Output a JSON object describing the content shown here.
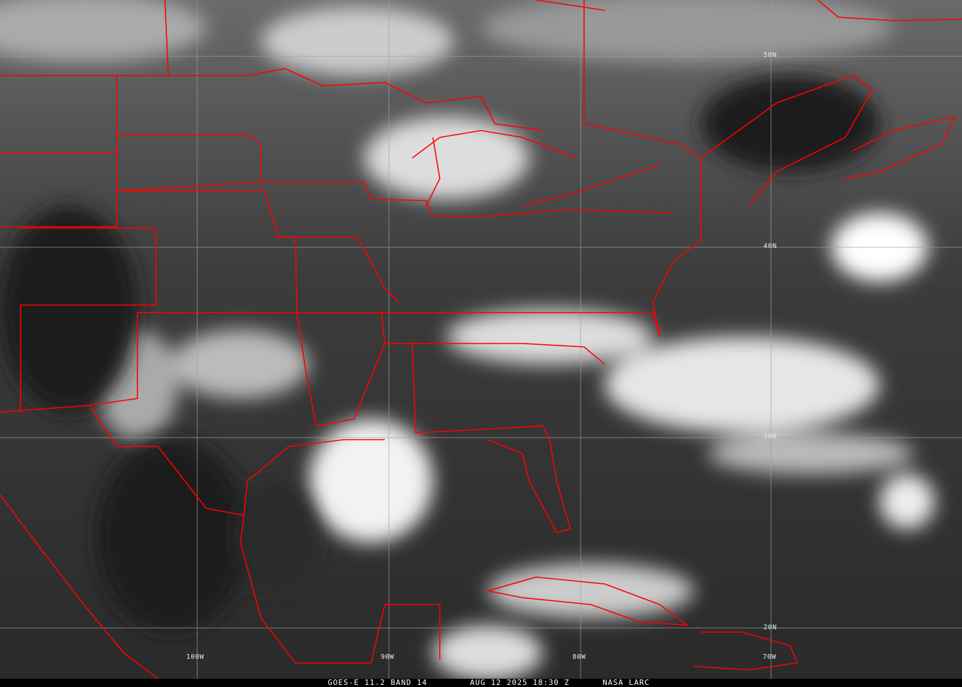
{
  "caption": {
    "satellite": "GOES-E 11.2 BAND 14",
    "datetime": "AUG 12 2025 18:30 Z",
    "credit": "NASA LARC"
  },
  "grid_labels": {
    "lat": [
      "50N",
      "40N",
      "30N",
      "20N"
    ],
    "lon": [
      "100W",
      "90W",
      "80W",
      "70W"
    ]
  },
  "colors": {
    "boundaries": "#ff0000",
    "grid": "#a0a0a0",
    "caption_bg": "#000000"
  }
}
